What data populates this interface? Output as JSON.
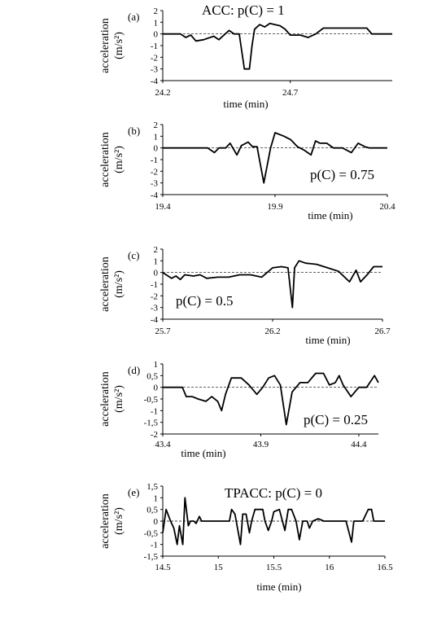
{
  "chart_data": [
    {
      "type": "line",
      "panel_label": "(a)",
      "annotation": "ACC: p(C) = 1",
      "ylabel": "acceleration (m/s²)",
      "xlabel": "time (min)",
      "xlim": [
        24.2,
        25.1
      ],
      "ylim": [
        -4,
        2
      ],
      "yticks": [
        2,
        1,
        0,
        -1,
        -2,
        -3,
        -4
      ],
      "ytick_labels": [
        "2",
        "1",
        "0",
        "-1",
        "-2",
        "-3",
        "-4"
      ],
      "xticks": [
        24.2,
        24.7
      ],
      "xtick_labels": [
        "24.2",
        "24.7"
      ],
      "x": [
        24.2,
        24.24,
        24.27,
        24.29,
        24.31,
        24.33,
        24.36,
        24.4,
        24.42,
        24.44,
        24.46,
        24.48,
        24.5,
        24.52,
        24.54,
        24.55,
        24.56,
        24.57,
        24.58,
        24.6,
        24.62,
        24.64,
        24.66,
        24.68,
        24.7,
        24.74,
        24.77,
        24.8,
        24.83,
        24.86,
        24.9,
        24.98,
        25.0,
        25.02,
        25.06,
        25.1
      ],
      "y": [
        0,
        0,
        0,
        -0.3,
        -0.1,
        -0.6,
        -0.5,
        -0.2,
        -0.5,
        -0.1,
        0.3,
        0,
        0,
        -3,
        -3,
        -1,
        0.4,
        0.6,
        0.8,
        0.6,
        0.9,
        0.8,
        0.7,
        0.4,
        -0.1,
        -0.1,
        -0.3,
        0,
        0.5,
        0.5,
        0.5,
        0.5,
        0.5,
        0,
        0,
        0
      ]
    },
    {
      "type": "line",
      "panel_label": "(b)",
      "annotation": "p(C) = 0.75",
      "ylabel": "acceleration (m/s²)",
      "xlabel": "time (min)",
      "xlim": [
        19.4,
        20.4
      ],
      "ylim": [
        -4,
        2
      ],
      "yticks": [
        2,
        1,
        0,
        -1,
        -2,
        -3,
        -4
      ],
      "ytick_labels": [
        "2",
        "1",
        "0",
        "-1",
        "-2",
        "-3",
        "-4"
      ],
      "xticks": [
        19.4,
        19.9,
        20.4
      ],
      "xtick_labels": [
        "19.4",
        "19.9",
        "20.4"
      ],
      "x": [
        19.4,
        19.6,
        19.63,
        19.65,
        19.68,
        19.7,
        19.73,
        19.75,
        19.78,
        19.8,
        19.82,
        19.85,
        19.88,
        19.9,
        19.94,
        19.97,
        20.0,
        20.03,
        20.06,
        20.08,
        20.1,
        20.13,
        20.16,
        20.2,
        20.24,
        20.27,
        20.3,
        20.32,
        20.35,
        20.4
      ],
      "y": [
        0,
        0,
        -0.4,
        0,
        0,
        0.4,
        -0.6,
        0.2,
        0.5,
        0.1,
        0.1,
        -3,
        0,
        1.3,
        1,
        0.7,
        0.1,
        -0.2,
        -0.6,
        0.6,
        0.4,
        0.4,
        0,
        0,
        -0.4,
        0.4,
        0.1,
        0,
        0,
        0
      ]
    },
    {
      "type": "line",
      "panel_label": "(c)",
      "annotation": "p(C) = 0.5",
      "ylabel": "acceleration (m/s²)",
      "xlabel": "time (min)",
      "xlim": [
        25.7,
        26.7
      ],
      "ylim": [
        -4,
        2
      ],
      "yticks": [
        2,
        1,
        0,
        -1,
        -2,
        -3,
        -4
      ],
      "ytick_labels": [
        "2",
        "1",
        "0",
        "-1",
        "-2",
        "-3",
        "-4"
      ],
      "xticks": [
        25.7,
        26.2,
        26.7
      ],
      "xtick_labels": [
        "25.7",
        "26.2",
        "26.7"
      ],
      "x": [
        25.7,
        25.74,
        25.76,
        25.78,
        25.8,
        25.84,
        25.87,
        25.9,
        25.95,
        26.0,
        26.05,
        26.1,
        26.15,
        26.2,
        26.24,
        26.27,
        26.29,
        26.3,
        26.32,
        26.35,
        26.4,
        26.45,
        26.5,
        26.55,
        26.58,
        26.6,
        26.63,
        26.66,
        26.7
      ],
      "y": [
        0,
        -0.5,
        -0.3,
        -0.6,
        -0.2,
        -0.3,
        -0.2,
        -0.5,
        -0.4,
        -0.4,
        -0.2,
        -0.2,
        -0.4,
        0.4,
        0.5,
        0.4,
        -3,
        0.4,
        1,
        0.8,
        0.7,
        0.4,
        0.1,
        -0.8,
        0.2,
        -0.8,
        -0.2,
        0.5,
        0.5
      ]
    },
    {
      "type": "line",
      "panel_label": "(d)",
      "annotation": "p(C) = 0.25",
      "ylabel": "acceleration (m/s²)",
      "xlabel": "time (min)",
      "xlim": [
        43.4,
        44.5
      ],
      "ylim": [
        -2,
        1
      ],
      "yticks": [
        1,
        0.5,
        0,
        -0.5,
        -1,
        -1.5,
        -2
      ],
      "ytick_labels": [
        "1",
        "0,5",
        "0",
        "-0,5",
        "-1",
        "-1,5",
        "-2"
      ],
      "xticks": [
        43.4,
        43.9,
        44.4
      ],
      "xtick_labels": [
        "43.4",
        "43.9",
        "44.4"
      ],
      "x": [
        43.4,
        43.45,
        43.5,
        43.52,
        43.55,
        43.58,
        43.62,
        43.65,
        43.68,
        43.7,
        43.72,
        43.75,
        43.8,
        43.84,
        43.88,
        43.91,
        43.94,
        43.97,
        44.0,
        44.03,
        44.06,
        44.1,
        44.14,
        44.18,
        44.22,
        44.25,
        44.28,
        44.3,
        44.32,
        44.36,
        44.4,
        44.44,
        44.48,
        44.5
      ],
      "y": [
        0,
        0,
        0,
        -0.4,
        -0.4,
        -0.5,
        -0.6,
        -0.4,
        -0.6,
        -1,
        -0.3,
        0.4,
        0.4,
        0.1,
        -0.3,
        0,
        0.4,
        0.5,
        0.1,
        -1.6,
        -0.2,
        0.2,
        0.2,
        0.6,
        0.6,
        0.1,
        0.2,
        0.5,
        0.1,
        -0.4,
        0,
        0,
        0.5,
        0.2
      ]
    },
    {
      "type": "line",
      "panel_label": "(e)",
      "annotation": "TPACC: p(C) = 0",
      "ylabel": "acceleration (m/s²)",
      "xlabel": "time (min)",
      "xlim": [
        14.5,
        16.5
      ],
      "ylim": [
        -1.5,
        1.5
      ],
      "yticks": [
        1.5,
        1,
        0.5,
        0,
        -0.5,
        -1,
        -1.5
      ],
      "ytick_labels": [
        "1,5",
        "1",
        "0,5",
        "0",
        "-0,5",
        "-1",
        "-1,5"
      ],
      "xticks": [
        14.5,
        15,
        15.5,
        16,
        16.5
      ],
      "xtick_labels": [
        "14.5",
        "15",
        "15.5",
        "16",
        "16.5"
      ],
      "x": [
        14.5,
        14.53,
        14.57,
        14.6,
        14.63,
        14.65,
        14.68,
        14.7,
        14.73,
        14.75,
        14.78,
        14.8,
        14.83,
        14.85,
        14.88,
        14.92,
        14.95,
        15.0,
        15.05,
        15.1,
        15.12,
        15.15,
        15.2,
        15.22,
        15.25,
        15.28,
        15.3,
        15.33,
        15.36,
        15.4,
        15.42,
        15.45,
        15.48,
        15.5,
        15.55,
        15.6,
        15.63,
        15.66,
        15.7,
        15.73,
        15.76,
        15.8,
        15.82,
        15.85,
        15.9,
        15.95,
        15.98,
        16.0,
        16.05,
        16.1,
        16.15,
        16.2,
        16.22,
        16.25,
        16.3,
        16.35,
        16.38,
        16.4,
        16.42,
        16.45,
        16.5
      ],
      "y": [
        -0.5,
        0.5,
        0,
        -0.3,
        -1,
        -0.2,
        -1,
        1,
        -0.2,
        0,
        0,
        -0.1,
        0.2,
        0,
        0,
        0,
        0,
        0,
        0,
        0,
        0.5,
        0.3,
        -1,
        0.3,
        0.3,
        -0.5,
        0,
        0.5,
        0.5,
        0.5,
        0,
        -0.4,
        0,
        0.4,
        0.5,
        -0.4,
        0.5,
        0.5,
        0,
        -0.8,
        0,
        0,
        -0.3,
        0,
        0.1,
        0,
        0,
        0,
        0,
        0,
        0,
        -0.9,
        0,
        0,
        0,
        0.5,
        0.5,
        0,
        0,
        0,
        0
      ]
    }
  ]
}
